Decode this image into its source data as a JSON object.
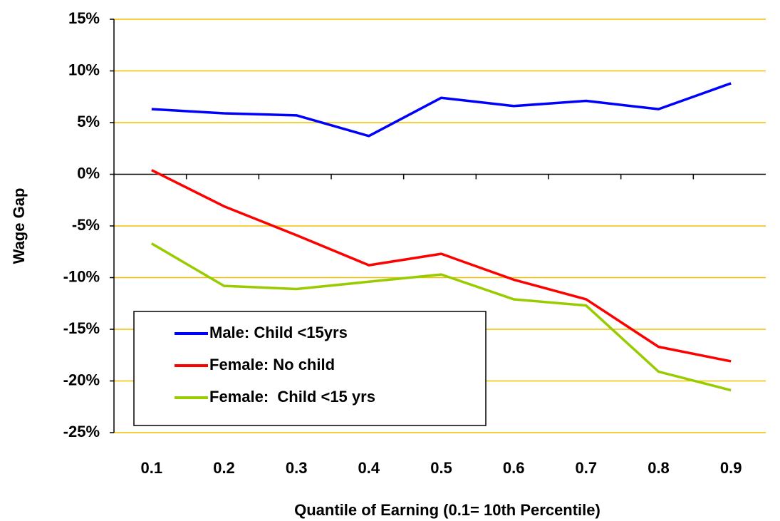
{
  "chart_data": {
    "type": "line",
    "y_label": "Wage Gap",
    "x_label": "Quantile of Earning (0.1= 10th Percentile)",
    "categories": [
      "0.1",
      "0.2",
      "0.3",
      "0.4",
      "0.5",
      "0.6",
      "0.7",
      "0.8",
      "0.9"
    ],
    "series": [
      {
        "name": "Male: Child <15yrs",
        "color": "#0000ff",
        "values": [
          6.3,
          5.9,
          5.7,
          3.7,
          7.4,
          6.6,
          7.1,
          6.3,
          8.8
        ]
      },
      {
        "name": "Female: No child",
        "color": "#ff0000",
        "values": [
          0.4,
          -3.1,
          -5.9,
          -8.8,
          -7.7,
          -10.2,
          -12.1,
          -16.7,
          -18.1
        ]
      },
      {
        "name": "Female:  Child <15 yrs",
        "color": "#99cc00",
        "values": [
          -6.7,
          -10.8,
          -11.1,
          -10.4,
          -9.7,
          -12.1,
          -12.7,
          -19.1,
          -20.9
        ]
      }
    ],
    "ylim": [
      -25,
      15
    ],
    "yticks": [
      {
        "value": -25,
        "label": "-25%"
      },
      {
        "value": -20,
        "label": "-20%"
      },
      {
        "value": -15,
        "label": "-15%"
      },
      {
        "value": -10,
        "label": "-10%"
      },
      {
        "value": -5,
        "label": "-5%"
      },
      {
        "value": 0,
        "label": "0%"
      },
      {
        "value": 5,
        "label": "5%"
      },
      {
        "value": 10,
        "label": "10%"
      },
      {
        "value": 15,
        "label": "15%"
      }
    ],
    "grid": true,
    "grid_color": "#f0c000",
    "legend": "lower left"
  }
}
